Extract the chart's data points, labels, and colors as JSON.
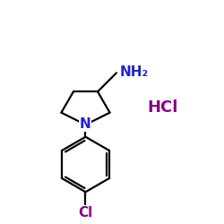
{
  "background_color": "#ffffff",
  "bond_color": "#000000",
  "N_color": "#2222cc",
  "NH2_color": "#2222cc",
  "Cl_color": "#880088",
  "HCl_color": "#880088",
  "line_width": 1.6,
  "HCl_text": "HCl",
  "NH2_text": "NH₂",
  "N_text": "N",
  "Cl_text": "Cl",
  "NH2_fontsize": 11,
  "N_fontsize": 11,
  "Cl_fontsize": 11,
  "HCl_fontsize": 13
}
